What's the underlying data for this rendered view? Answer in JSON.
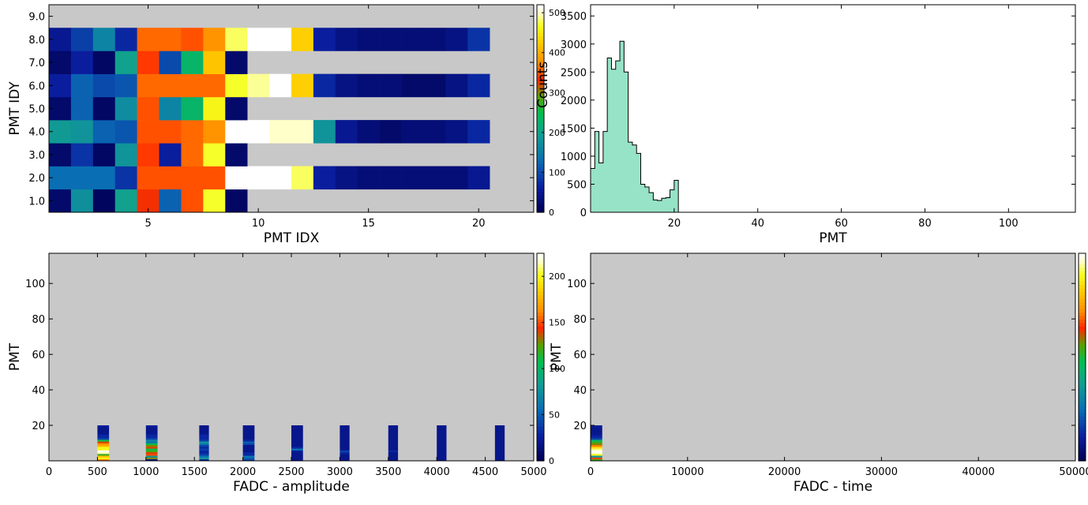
{
  "colors": {
    "plot_bg": "#c8c8c8",
    "hist_fill": "#97e3c7",
    "hist_edge": "#000000",
    "colormap": [
      "#000050",
      "#0a1ea0",
      "#0a6eb4",
      "#12a090",
      "#5aa000",
      "#f5ff1e",
      "#ffffc8",
      "#ffffff",
      "#ffcc00",
      "#ff8c00",
      "#ff2800",
      "#b04000"
    ]
  },
  "chart_data": [
    {
      "id": "pmt-map",
      "type": "heatmap",
      "xlabel": "PMT IDX",
      "ylabel": "PMT IDY",
      "xlim": [
        0.5,
        22.5
      ],
      "ylim": [
        0.5,
        9.5
      ],
      "xticks": [
        5,
        10,
        15,
        20
      ],
      "yticks": [
        1.0,
        2.0,
        3.0,
        4.0,
        5.0,
        6.0,
        7.0,
        8.0,
        9.0
      ],
      "colorbar": {
        "label": "Counts",
        "range": [
          0,
          520
        ],
        "ticks": [
          0,
          100,
          200,
          300,
          400,
          500
        ]
      },
      "rows": [
        {
          "y": 1,
          "values": [
            20,
            175,
            10,
            200,
            330,
            120,
            350,
            470,
            15
          ]
        },
        {
          "y": 2,
          "values": [
            130,
            130,
            130,
            80,
            350,
            350,
            350,
            350,
            560,
            540,
            560,
            480,
            60,
            40,
            30,
            30,
            30,
            30,
            30,
            50
          ]
        },
        {
          "y": 3,
          "values": [
            20,
            80,
            15,
            180,
            340,
            60,
            360,
            470,
            20
          ]
        },
        {
          "y": 4,
          "values": [
            190,
            180,
            120,
            110,
            350,
            350,
            360,
            380,
            550,
            560,
            500,
            500,
            180,
            50,
            30,
            20,
            30,
            30,
            40,
            70
          ]
        },
        {
          "y": 5,
          "values": [
            20,
            120,
            15,
            170,
            350,
            160,
            230,
            460,
            20
          ]
        },
        {
          "y": 6,
          "values": [
            60,
            120,
            100,
            110,
            360,
            360,
            360,
            360,
            470,
            490,
            530,
            430,
            70,
            40,
            30,
            30,
            20,
            20,
            40,
            70
          ]
        },
        {
          "y": 7,
          "values": [
            20,
            60,
            15,
            200,
            340,
            100,
            230,
            420,
            20
          ]
        },
        {
          "y": 8,
          "values": [
            50,
            90,
            160,
            70,
            360,
            360,
            350,
            380,
            480,
            560,
            540,
            430,
            60,
            40,
            30,
            30,
            30,
            30,
            40,
            80
          ]
        }
      ]
    },
    {
      "id": "pmt-hist",
      "type": "area",
      "xlabel": "PMT",
      "ylabel": "",
      "xlim": [
        0,
        116
      ],
      "ylim": [
        0,
        3700
      ],
      "xticks": [
        20,
        40,
        60,
        80,
        100
      ],
      "yticks": [
        0,
        500,
        1000,
        1500,
        2000,
        2500,
        3000,
        3500
      ],
      "bin_width": 1,
      "x": [
        0,
        1,
        2,
        3,
        4,
        5,
        6,
        7,
        8,
        9,
        10,
        11,
        12,
        13,
        14,
        15,
        16,
        17,
        18,
        19,
        20
      ],
      "values": [
        780,
        1440,
        880,
        1440,
        2750,
        2550,
        2700,
        3050,
        2500,
        1250,
        1200,
        1050,
        500,
        450,
        350,
        220,
        210,
        250,
        260,
        400,
        570
      ]
    },
    {
      "id": "pmt-vs-amplitude",
      "type": "heatmap",
      "xlabel": "FADC - amplitude",
      "ylabel": "PMT",
      "xlim": [
        0,
        5000
      ],
      "ylim": [
        0,
        117
      ],
      "xticks": [
        0,
        500,
        1000,
        1500,
        2000,
        2500,
        3000,
        3500,
        4000,
        4500,
        5000
      ],
      "yticks": [
        20,
        40,
        60,
        80,
        100
      ],
      "colorbar": {
        "label": "",
        "range": [
          0,
          225
        ],
        "ticks": [
          0,
          50,
          100,
          150,
          200
        ]
      },
      "columns": [
        {
          "x_from": 500,
          "x_to": 620,
          "values": [
            160,
            200,
            180,
            120,
            215,
            225,
            200,
            200,
            175,
            165,
            140,
            110,
            40,
            30,
            30,
            20,
            20,
            20,
            20,
            25
          ]
        },
        {
          "x_from": 1000,
          "x_to": 1120,
          "values": [
            20,
            130,
            80,
            150,
            140,
            120,
            110,
            140,
            130,
            110,
            60,
            70,
            40,
            30,
            30,
            20,
            20,
            20,
            20,
            25
          ]
        },
        {
          "x_from": 1550,
          "x_to": 1650,
          "values": [
            30,
            80,
            60,
            40,
            30,
            30,
            40,
            30,
            40,
            60,
            80,
            40,
            30,
            30,
            30,
            20,
            20,
            20,
            20,
            20
          ]
        },
        {
          "x_from": 2000,
          "x_to": 2120,
          "values": [
            40,
            50,
            60,
            30,
            30,
            20,
            20,
            20,
            20,
            40,
            50,
            30,
            20,
            20,
            20,
            20,
            20,
            20,
            20,
            20
          ]
        },
        {
          "x_from": 2500,
          "x_to": 2620,
          "values": [
            20,
            20,
            20,
            20,
            20,
            25,
            60,
            30,
            20,
            20,
            20,
            20,
            20,
            20,
            20,
            20,
            20,
            20,
            20,
            20
          ]
        },
        {
          "x_from": 3000,
          "x_to": 3100,
          "values": [
            20,
            20,
            20,
            20,
            30,
            40,
            20,
            20,
            20,
            20,
            20,
            20,
            20,
            20,
            20,
            20,
            20,
            20,
            20,
            20
          ]
        },
        {
          "x_from": 3500,
          "x_to": 3600,
          "values": [
            20,
            20,
            20,
            20,
            20,
            30,
            20,
            20,
            20,
            20,
            20,
            20,
            20,
            20,
            20,
            20,
            20,
            20,
            20,
            20
          ]
        },
        {
          "x_from": 4000,
          "x_to": 4100,
          "values": [
            20,
            20,
            20,
            20,
            20,
            20,
            20,
            20,
            20,
            20,
            20,
            20,
            20,
            20,
            20,
            20,
            20,
            20,
            20,
            20
          ]
        },
        {
          "x_from": 4600,
          "x_to": 4700,
          "values": [
            20,
            20,
            20,
            20,
            20,
            20,
            20,
            20,
            20,
            20,
            20,
            20,
            20,
            20,
            20,
            20,
            20,
            20,
            20,
            20
          ]
        }
      ]
    },
    {
      "id": "pmt-vs-time",
      "type": "heatmap",
      "xlabel": "FADC - time",
      "ylabel": "PMT",
      "xlim": [
        0,
        50000
      ],
      "ylim": [
        0,
        117
      ],
      "xticks": [
        0,
        10000,
        20000,
        30000,
        40000,
        50000
      ],
      "yticks": [
        20,
        40,
        60,
        80,
        100
      ],
      "colorbar": {
        "label": "",
        "range": [
          0,
          225
        ],
        "ticks": []
      },
      "columns": [
        {
          "x_from": 0,
          "x_to": 1200,
          "values": [
            120,
            150,
            80,
            200,
            220,
            225,
            210,
            190,
            160,
            130,
            120,
            100,
            40,
            30,
            25,
            20,
            20,
            20,
            20,
            25
          ]
        }
      ]
    }
  ]
}
